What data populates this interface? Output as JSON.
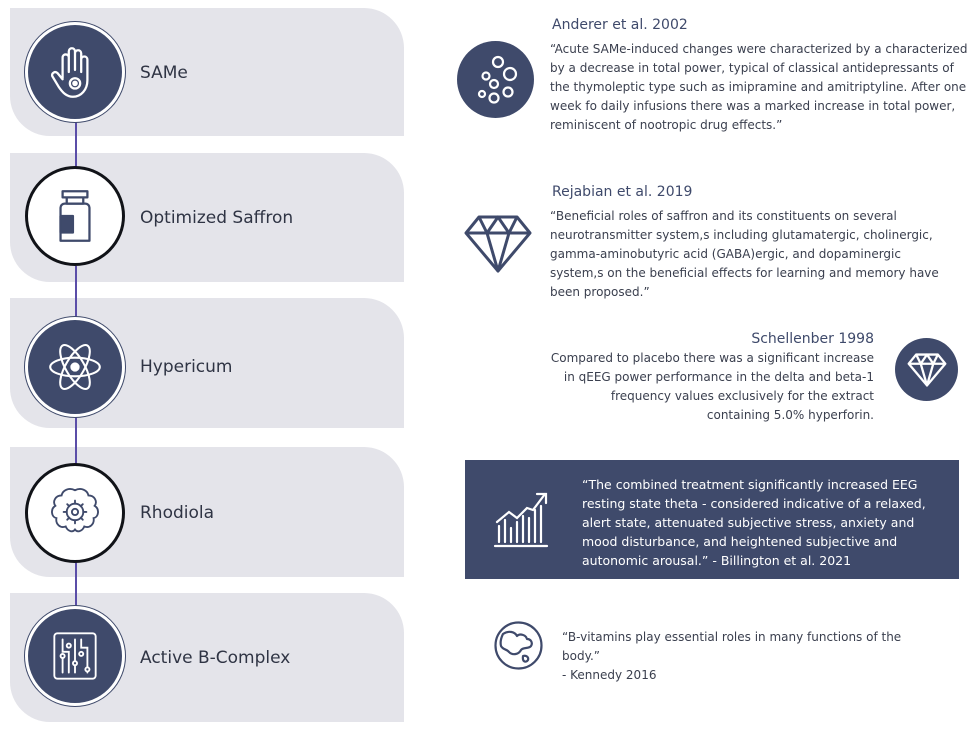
{
  "steps": [
    {
      "label": "SAMe",
      "icon": "hand-icon"
    },
    {
      "label": "Optimized Saffron",
      "icon": "jar-icon"
    },
    {
      "label": "Hypericum",
      "icon": "atom-icon"
    },
    {
      "label": "Rhodiola",
      "icon": "brain-gear-icon"
    },
    {
      "label": "Active B-Complex",
      "icon": "circuit-icon"
    }
  ],
  "refs": {
    "anderer": {
      "title": "Anderer et al. 2002",
      "quote": "“Acute SAMe-induced changes were characterized by a characterized by a decrease in total power, typical of classical antidepressants of the thymoleptic type such as imipramine and amitriptyline. After one week fo daily infusions there was a marked increase in total power, reminiscent of nootropic drug effects.”",
      "icon": "bubbles-icon"
    },
    "rejabian": {
      "title": "Rejabian et al. 2019",
      "quote": "“Beneficial roles of saffron and its constituents on several neurotransmitter system,s including glutamatergic, cholinergic, gamma-aminobutyric acid (GABA)ergic, and dopaminergic system,s on the beneficial effects for learning and memory have been proposed.”",
      "icon": "diamond-icon"
    },
    "schellenber": {
      "title": "Schellenber 1998",
      "quote": "Compared to placebo there was a significant increase in qEEG power performance in the delta and beta-1 frequency values exclusively for the extract containing 5.0% hyperforin.",
      "icon": "diamond-icon"
    },
    "billington": {
      "quote": "“The combined treatment significantly increased EEG resting state theta - considered indicative of a relaxed, alert state, attenuated subjective stress, anxiety and mood disturbance, and heightened subjective and autonomic arousal.” - Billington et al. 2021",
      "icon": "growth-chart-icon"
    },
    "kennedy": {
      "quote": "“B-vitamins play essential roles in many functions of the body.”\n- Kennedy 2016",
      "icon": "globe-icon"
    }
  },
  "colors": {
    "navy": "#3f4a6b",
    "card": "#e4e4ea",
    "connector": "#5b4ea8"
  }
}
